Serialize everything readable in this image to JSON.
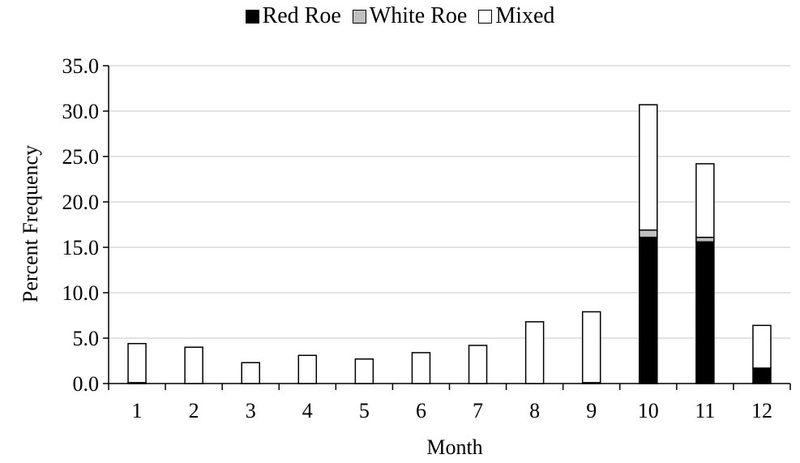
{
  "chart_data": {
    "type": "bar",
    "stacked": true,
    "categories": [
      "1",
      "2",
      "3",
      "4",
      "5",
      "6",
      "7",
      "8",
      "9",
      "10",
      "11",
      "12"
    ],
    "series": [
      {
        "name": "Red Roe",
        "color": "#000000",
        "values": [
          0.1,
          0,
          0,
          0,
          0,
          0,
          0,
          0,
          0.1,
          16.1,
          15.6,
          1.7
        ]
      },
      {
        "name": "White Roe",
        "color": "#bfbfbf",
        "values": [
          0,
          0,
          0,
          0,
          0,
          0,
          0,
          0,
          0,
          0.8,
          0.5,
          0
        ]
      },
      {
        "name": "Mixed",
        "color": "#ffffff",
        "values": [
          4.3,
          4.0,
          2.3,
          3.1,
          2.7,
          3.4,
          4.2,
          6.8,
          7.8,
          13.8,
          8.1,
          4.7
        ]
      }
    ],
    "ylim": [
      0,
      35
    ],
    "yticks": [
      "0.0",
      "5.0",
      "10.0",
      "15.0",
      "20.0",
      "25.0",
      "30.0",
      "35.0"
    ],
    "xlabel": "Month",
    "ylabel": "Percent Frequency",
    "grid": true,
    "legend_position": "top"
  }
}
